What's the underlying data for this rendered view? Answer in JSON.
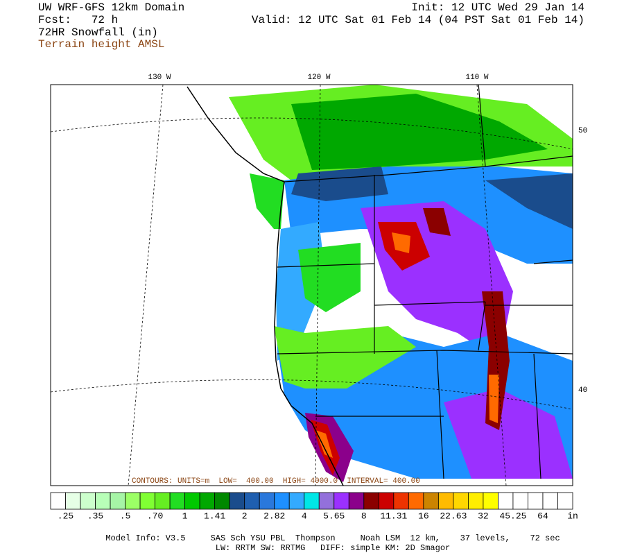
{
  "header": {
    "lines": [
      "UW WRF-GFS 12km Domain",
      "Fcst:   72 h",
      "72HR Snowfall (in)"
    ],
    "terrain": "Terrain height AMSL",
    "init": "Init: 12 UTC Wed 29 Jan 14",
    "valid": "Valid: 12 UTC Sat 01 Feb 14 (04 PST Sat 01 Feb 14)"
  },
  "map": {
    "lon_labels": [
      "130 W",
      "120 W",
      "110 W"
    ],
    "lat_labels": [
      "50",
      "40"
    ],
    "contour_note": "CONTOURS: UNITS=m  LOW=  400.00  HIGH= 4000.0  INTERVAL= 400.00"
  },
  "colorbar": {
    "colors": [
      "#ffffff",
      "#e6ffe6",
      "#ccffcc",
      "#b8ffb8",
      "#a6f5a6",
      "#9cff66",
      "#80ff33",
      "#66ee22",
      "#22dd22",
      "#00c800",
      "#00a800",
      "#008800",
      "#1a4c8c",
      "#1f5fb0",
      "#2a78dc",
      "#1e90ff",
      "#33aaff",
      "#00e6e6",
      "#9370db",
      "#9b30ff",
      "#8b008b",
      "#8b0000",
      "#cc0000",
      "#ee3300",
      "#ff6a00",
      "#cc8400",
      "#ffbb00",
      "#ffd700",
      "#ffee00",
      "#ffff00",
      "#ffffff",
      "#ffffff",
      "#ffffff",
      "#ffffff",
      "#ffffff"
    ],
    "labels": [
      ".25",
      ".35",
      ".5",
      ".70",
      "1",
      "1.41",
      "2",
      "2.82",
      "4",
      "5.65",
      "8",
      "11.31",
      "16",
      "22.63",
      "32",
      "45.25",
      "64"
    ],
    "units": "in"
  },
  "footer": [
    "Model Info: V3.5     SAS Sch YSU PBL  Thompson     Noah LSM  12 km,    37 levels,    72 sec",
    "LW: RRTM SW: RRTMG   DIFF: simple KM: 2D Smagor"
  ]
}
